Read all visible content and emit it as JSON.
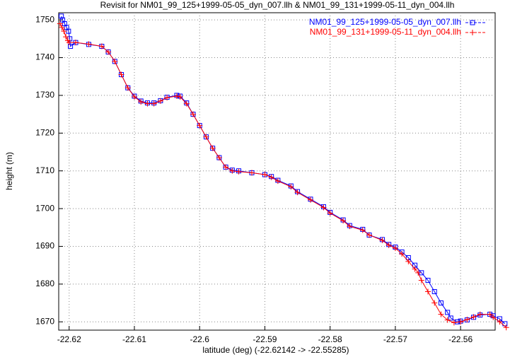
{
  "chart_data": {
    "type": "scatter",
    "title": "Revisit for NM01_99_125+1999-05-05_dyn_007.llh & NM01_99_131+1999-05-11_dyn_004.llh",
    "x_label": "latitude (deg) (-22.62142 -> -22.55285)",
    "y_label": "height (m)",
    "xlim": [
      -22.6216,
      -22.5547
    ],
    "ylim": [
      1667.8,
      1751.9
    ],
    "xticks": [
      -22.62,
      -22.61,
      -22.6,
      -22.59,
      -22.58,
      -22.57,
      -22.56
    ],
    "yticks": [
      1670,
      1680,
      1690,
      1700,
      1710,
      1720,
      1730,
      1740,
      1750
    ],
    "grid": true,
    "legend": "top-right",
    "series": [
      {
        "name": "NM01_99_125+1999-05-05_dyn_007.llh",
        "color": "#0000ff",
        "marker": "square",
        "x": [
          -22.6212,
          -22.621,
          -22.6207,
          -22.6204,
          -22.6201,
          -22.6199,
          -22.6198,
          -22.619,
          -22.617,
          -22.615,
          -22.614,
          -22.613,
          -22.612,
          -22.611,
          -22.61,
          -22.609,
          -22.608,
          -22.607,
          -22.606,
          -22.605,
          -22.6035,
          -22.603,
          -22.602,
          -22.601,
          -22.6,
          -22.599,
          -22.598,
          -22.597,
          -22.596,
          -22.595,
          -22.594,
          -22.592,
          -22.59,
          -22.589,
          -22.588,
          -22.586,
          -22.585,
          -22.583,
          -22.581,
          -22.58,
          -22.578,
          -22.577,
          -22.575,
          -22.574,
          -22.572,
          -22.571,
          -22.57,
          -22.569,
          -22.568,
          -22.567,
          -22.566,
          -22.565,
          -22.564,
          -22.563,
          -22.562,
          -22.5615,
          -22.5605,
          -22.56,
          -22.559,
          -22.558,
          -22.557,
          -22.5555,
          -22.555,
          -22.554,
          -22.5532
        ],
        "values": [
          1751,
          1750,
          1749,
          1748,
          1747,
          1745,
          1743,
          1744,
          1743.5,
          1743,
          1741.5,
          1739,
          1735.5,
          1732,
          1729.8,
          1728.5,
          1728,
          1728,
          1728.6,
          1729.5,
          1730,
          1729.8,
          1728,
          1725,
          1722,
          1719,
          1716,
          1713.5,
          1711,
          1710.2,
          1710,
          1709.5,
          1709,
          1708.5,
          1707.5,
          1706,
          1704.5,
          1702.5,
          1700.5,
          1699,
          1697,
          1695.5,
          1694.5,
          1693,
          1691.8,
          1690.5,
          1689.8,
          1688.5,
          1687,
          1685,
          1683,
          1681,
          1678,
          1675,
          1672.5,
          1671,
          1670,
          1670.2,
          1670.5,
          1671.2,
          1671.8,
          1672,
          1671.6,
          1670.8,
          1669.5
        ]
      },
      {
        "name": "NM01_99_131+1999-05-11_dyn_004.llh",
        "color": "#ff0000",
        "marker": "plus",
        "x": [
          -22.6214,
          -22.6211,
          -22.6208,
          -22.6205,
          -22.6202,
          -22.62,
          -22.619,
          -22.617,
          -22.615,
          -22.614,
          -22.613,
          -22.612,
          -22.611,
          -22.61,
          -22.609,
          -22.608,
          -22.607,
          -22.606,
          -22.605,
          -22.6035,
          -22.603,
          -22.602,
          -22.601,
          -22.6,
          -22.599,
          -22.598,
          -22.597,
          -22.596,
          -22.595,
          -22.594,
          -22.592,
          -22.59,
          -22.589,
          -22.588,
          -22.586,
          -22.585,
          -22.583,
          -22.581,
          -22.58,
          -22.578,
          -22.577,
          -22.575,
          -22.574,
          -22.572,
          -22.571,
          -22.57,
          -22.569,
          -22.568,
          -22.567,
          -22.5665,
          -22.566,
          -22.565,
          -22.564,
          -22.563,
          -22.562,
          -22.561,
          -22.56,
          -22.559,
          -22.558,
          -22.557,
          -22.5555,
          -22.555,
          -22.554,
          -22.553
        ],
        "values": [
          1749,
          1748,
          1747,
          1745.5,
          1744.5,
          1744,
          1744,
          1743.6,
          1743,
          1741.5,
          1739,
          1735.5,
          1732,
          1729.6,
          1728.3,
          1727.8,
          1727.8,
          1728.5,
          1729.4,
          1729.8,
          1729.6,
          1727.8,
          1725,
          1722,
          1719,
          1716,
          1713.5,
          1711,
          1710,
          1709.8,
          1709.5,
          1709,
          1708.3,
          1707.3,
          1705.8,
          1704.3,
          1702.3,
          1700.3,
          1698.8,
          1696.8,
          1695.3,
          1694.3,
          1693,
          1691.6,
          1690.3,
          1689.5,
          1688,
          1686,
          1684,
          1683,
          1681,
          1678,
          1675,
          1672,
          1670.5,
          1669.8,
          1670,
          1670.6,
          1671.3,
          1672,
          1672,
          1671.2,
          1670,
          1668.5
        ]
      }
    ]
  }
}
